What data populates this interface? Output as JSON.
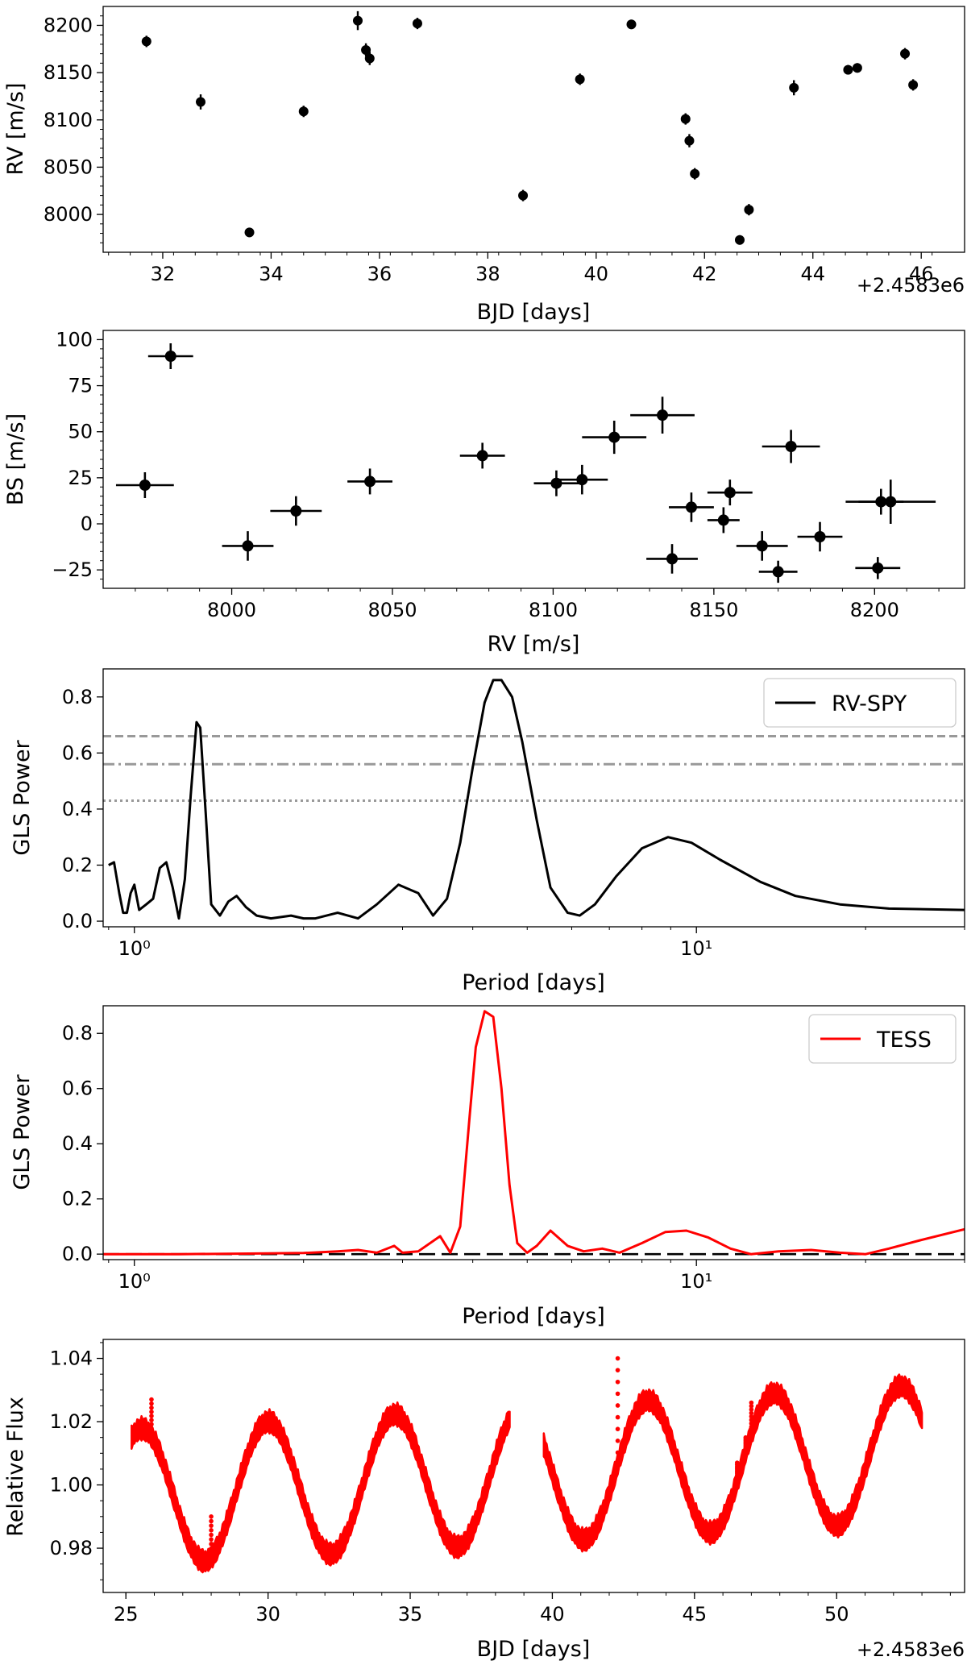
{
  "chart_data": [
    {
      "type": "scatter",
      "panel": "rv-vs-time",
      "xlabel": "BJD [days]",
      "ylabel": "RV [m/s]",
      "offset_label": "+2.4583e6",
      "xlim": [
        30.9,
        46.8
      ],
      "ylim": [
        7960,
        8220
      ],
      "xticks": [
        32,
        34,
        36,
        38,
        40,
        42,
        44,
        46
      ],
      "xtick_labels": [
        "32",
        "34",
        "36",
        "38",
        "40",
        "42",
        "44",
        "46"
      ],
      "yticks": [
        8000,
        8050,
        8100,
        8150,
        8200
      ],
      "ytick_labels": [
        "8000",
        "8050",
        "8100",
        "8150",
        "8200"
      ],
      "points": [
        {
          "x": 31.7,
          "y": 8183,
          "yerr": 6
        },
        {
          "x": 32.7,
          "y": 8119,
          "yerr": 8
        },
        {
          "x": 33.6,
          "y": 7981,
          "yerr": 5
        },
        {
          "x": 34.6,
          "y": 8109,
          "yerr": 6
        },
        {
          "x": 35.6,
          "y": 8205,
          "yerr": 10
        },
        {
          "x": 35.75,
          "y": 8174,
          "yerr": 7
        },
        {
          "x": 35.82,
          "y": 8165,
          "yerr": 7
        },
        {
          "x": 36.7,
          "y": 8202,
          "yerr": 6
        },
        {
          "x": 38.65,
          "y": 8020,
          "yerr": 6
        },
        {
          "x": 39.7,
          "y": 8143,
          "yerr": 6
        },
        {
          "x": 40.65,
          "y": 8201,
          "yerr": 5
        },
        {
          "x": 41.65,
          "y": 8101,
          "yerr": 6
        },
        {
          "x": 41.72,
          "y": 8078,
          "yerr": 7
        },
        {
          "x": 41.82,
          "y": 8043,
          "yerr": 6
        },
        {
          "x": 42.65,
          "y": 7973,
          "yerr": 5
        },
        {
          "x": 42.82,
          "y": 8005,
          "yerr": 6
        },
        {
          "x": 43.65,
          "y": 8134,
          "yerr": 8
        },
        {
          "x": 44.65,
          "y": 8153,
          "yerr": 5
        },
        {
          "x": 44.82,
          "y": 8155,
          "yerr": 5
        },
        {
          "x": 45.7,
          "y": 8170,
          "yerr": 6
        },
        {
          "x": 45.85,
          "y": 8137,
          "yerr": 6
        }
      ]
    },
    {
      "type": "scatter",
      "panel": "bs-vs-rv",
      "xlabel": "RV [m/s]",
      "ylabel": "BS [m/s]",
      "xlim": [
        7960,
        8228
      ],
      "ylim": [
        -35,
        105
      ],
      "xticks": [
        8000,
        8050,
        8100,
        8150,
        8200
      ],
      "xtick_labels": [
        "8000",
        "8050",
        "8100",
        "8150",
        "8200"
      ],
      "yticks": [
        -25,
        0,
        25,
        50,
        75,
        100
      ],
      "ytick_labels": [
        "−25",
        "0",
        "25",
        "50",
        "75",
        "100"
      ],
      "points": [
        {
          "x": 7981,
          "y": 91,
          "xerr": 7,
          "yerr": 7
        },
        {
          "x": 7973,
          "y": 21,
          "xerr": 9,
          "yerr": 7
        },
        {
          "x": 8005,
          "y": -12,
          "xerr": 8,
          "yerr": 8
        },
        {
          "x": 8020,
          "y": 7,
          "xerr": 8,
          "yerr": 8
        },
        {
          "x": 8043,
          "y": 23,
          "xerr": 7,
          "yerr": 7
        },
        {
          "x": 8078,
          "y": 37,
          "xerr": 7,
          "yerr": 7
        },
        {
          "x": 8101,
          "y": 22,
          "xerr": 7,
          "yerr": 7
        },
        {
          "x": 8109,
          "y": 24,
          "xerr": 8,
          "yerr": 8
        },
        {
          "x": 8119,
          "y": 47,
          "xerr": 10,
          "yerr": 9
        },
        {
          "x": 8134,
          "y": 59,
          "xerr": 10,
          "yerr": 10
        },
        {
          "x": 8137,
          "y": -19,
          "xerr": 8,
          "yerr": 8
        },
        {
          "x": 8143,
          "y": 9,
          "xerr": 7,
          "yerr": 8
        },
        {
          "x": 8153,
          "y": 2,
          "xerr": 5,
          "yerr": 7
        },
        {
          "x": 8155,
          "y": 17,
          "xerr": 7,
          "yerr": 7
        },
        {
          "x": 8165,
          "y": -12,
          "xerr": 8,
          "yerr": 8
        },
        {
          "x": 8170,
          "y": -26,
          "xerr": 6,
          "yerr": 6
        },
        {
          "x": 8174,
          "y": 42,
          "xerr": 9,
          "yerr": 9
        },
        {
          "x": 8183,
          "y": -7,
          "xerr": 7,
          "yerr": 8
        },
        {
          "x": 8201,
          "y": -24,
          "xerr": 7,
          "yerr": 6
        },
        {
          "x": 8202,
          "y": 12,
          "xerr": 7,
          "yerr": 7
        },
        {
          "x": 8205,
          "y": 12,
          "xerr": 14,
          "yerr": 12
        }
      ]
    },
    {
      "type": "line",
      "panel": "gls-rv",
      "xscale": "log",
      "xlabel": "Period [days]",
      "ylabel": "GLS Power",
      "xlim": [
        0.88,
        30
      ],
      "ylim": [
        -0.02,
        0.9
      ],
      "xticks": [
        1,
        10
      ],
      "xtick_labels": [
        "10⁰",
        "10¹"
      ],
      "yticks": [
        0.0,
        0.2,
        0.4,
        0.6,
        0.8
      ],
      "ytick_labels": [
        "0.0",
        "0.2",
        "0.4",
        "0.6",
        "0.8"
      ],
      "legend": "RV-SPY",
      "legend_position": "top-right",
      "thresholds": [
        {
          "y": 0.66,
          "style": "dashed"
        },
        {
          "y": 0.56,
          "style": "dashdot"
        },
        {
          "y": 0.43,
          "style": "dotted"
        }
      ],
      "series": [
        {
          "name": "RV-SPY",
          "color": "#000000",
          "x": [
            0.9,
            0.92,
            0.94,
            0.955,
            0.97,
            0.985,
            1.0,
            1.02,
            1.05,
            1.08,
            1.11,
            1.14,
            1.17,
            1.2,
            1.23,
            1.26,
            1.29,
            1.31,
            1.34,
            1.37,
            1.42,
            1.47,
            1.52,
            1.58,
            1.65,
            1.75,
            1.9,
            2.0,
            2.1,
            2.3,
            2.5,
            2.7,
            2.95,
            3.2,
            3.4,
            3.6,
            3.8,
            4.0,
            4.2,
            4.35,
            4.5,
            4.7,
            4.9,
            5.2,
            5.5,
            5.9,
            6.2,
            6.6,
            7.2,
            8.0,
            8.9,
            9.8,
            11,
            13,
            15,
            18,
            22,
            30
          ],
          "y": [
            0.2,
            0.21,
            0.1,
            0.03,
            0.03,
            0.1,
            0.13,
            0.04,
            0.06,
            0.08,
            0.19,
            0.21,
            0.12,
            0.01,
            0.15,
            0.45,
            0.71,
            0.69,
            0.38,
            0.06,
            0.02,
            0.07,
            0.09,
            0.05,
            0.02,
            0.01,
            0.02,
            0.01,
            0.01,
            0.03,
            0.01,
            0.06,
            0.13,
            0.1,
            0.02,
            0.08,
            0.28,
            0.55,
            0.78,
            0.86,
            0.86,
            0.8,
            0.64,
            0.36,
            0.12,
            0.03,
            0.02,
            0.06,
            0.16,
            0.26,
            0.3,
            0.28,
            0.22,
            0.14,
            0.09,
            0.06,
            0.045,
            0.04
          ]
        }
      ]
    },
    {
      "type": "line",
      "panel": "gls-tess",
      "xscale": "log",
      "xlabel": "Period [days]",
      "ylabel": "GLS Power",
      "xlim": [
        0.88,
        30
      ],
      "ylim": [
        -0.02,
        0.9
      ],
      "xticks": [
        1,
        10
      ],
      "xtick_labels": [
        "10⁰",
        "10¹"
      ],
      "yticks": [
        0.0,
        0.2,
        0.4,
        0.6,
        0.8
      ],
      "ytick_labels": [
        "0.0",
        "0.2",
        "0.4",
        "0.6",
        "0.8"
      ],
      "legend": "TESS",
      "legend_position": "top-right",
      "thresholds": [
        {
          "y": 0.0,
          "style": "dashed"
        }
      ],
      "series": [
        {
          "name": "TESS",
          "color": "#ff0000",
          "x": [
            0.88,
            1.2,
            1.6,
            2.0,
            2.3,
            2.5,
            2.7,
            2.9,
            3.0,
            3.2,
            3.5,
            3.65,
            3.8,
            3.95,
            4.05,
            4.2,
            4.35,
            4.5,
            4.65,
            4.8,
            5.0,
            5.2,
            5.5,
            5.9,
            6.3,
            6.8,
            7.3,
            8.0,
            8.8,
            9.6,
            10.5,
            11.5,
            12.5,
            14,
            16,
            18,
            20,
            22,
            25,
            30
          ],
          "y": [
            0.0,
            0.0,
            0.002,
            0.004,
            0.01,
            0.015,
            0.005,
            0.03,
            0.005,
            0.01,
            0.065,
            0.005,
            0.1,
            0.5,
            0.75,
            0.88,
            0.86,
            0.6,
            0.25,
            0.04,
            0.005,
            0.03,
            0.085,
            0.03,
            0.01,
            0.02,
            0.005,
            0.04,
            0.08,
            0.085,
            0.06,
            0.02,
            0.0,
            0.01,
            0.015,
            0.005,
            0.0,
            0.02,
            0.05,
            0.09
          ]
        }
      ]
    },
    {
      "type": "scatter",
      "panel": "tess-light-curve",
      "xlabel": "BJD [days]",
      "ylabel": "Relative Flux",
      "offset_label": "+2.4583e6",
      "xlim": [
        24.2,
        54.5
      ],
      "ylim": [
        0.966,
        1.046
      ],
      "xticks": [
        25,
        30,
        35,
        40,
        45,
        50
      ],
      "xtick_labels": [
        "25",
        "30",
        "35",
        "40",
        "45",
        "50"
      ],
      "yticks": [
        0.98,
        1.0,
        1.02,
        1.04
      ],
      "ytick_labels": [
        "0.98",
        "1.00",
        "1.02",
        "1.04"
      ],
      "color": "#ff0000",
      "model": {
        "period": 4.45,
        "amplitude": 0.0215,
        "mean_start": 0.996,
        "mean_end": 1.01,
        "peak_time": 25.55
      },
      "segments": [
        [
          25.2,
          38.5
        ],
        [
          39.7,
          53.0
        ]
      ],
      "flares": [
        {
          "x": 25.9,
          "y": 1.027
        },
        {
          "x": 28.0,
          "y": 0.99
        },
        {
          "x": 42.3,
          "y": 1.04
        },
        {
          "x": 46.5,
          "y": 1.007
        },
        {
          "x": 46.8,
          "y": 1.015
        },
        {
          "x": 47.0,
          "y": 1.026
        }
      ]
    }
  ]
}
